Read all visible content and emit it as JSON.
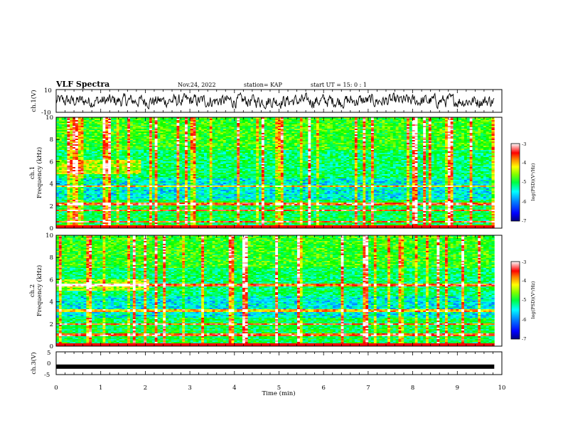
{
  "header": {
    "title": "VLF Spectra",
    "date": "Nov.24, 2022",
    "station": "station= KAP",
    "start_ut": "start UT =  15: 0 : 1"
  },
  "chart_data": [
    {
      "id": "ch1_waveform",
      "type": "line",
      "ylabel": "ch.1(V)",
      "ylim": [
        -10,
        10
      ],
      "yticks": [
        "10",
        "-10"
      ],
      "xlim": [
        0,
        10
      ],
      "description": "noisy waveform oscillating roughly between -6 and 6 V"
    },
    {
      "id": "ch1_spectrogram",
      "type": "heatmap",
      "ylabel": "ch.1\nFrequency (kHz)",
      "ylabel_line1": "ch.1",
      "ylabel_line2": "Frequency (kHz)",
      "ylim": [
        0,
        10
      ],
      "yticks": [
        "0",
        "2",
        "4",
        "6",
        "8",
        "10"
      ],
      "xlim": [
        0,
        10
      ],
      "data_end_min": 9.83,
      "colorbar": {
        "label": "log(PSD)(V²/Hz)",
        "range": [
          -7,
          -3
        ],
        "ticks": [
          "-3",
          "-4",
          "-5",
          "-6",
          "-7"
        ]
      },
      "features": {
        "strong_lines_khz": [
          3.8,
          2.2,
          1.6,
          0.6
        ],
        "step_change_min": 1.95,
        "band_above_step_khz": [
          4.9,
          6.1
        ]
      }
    },
    {
      "id": "ch2_spectrogram",
      "type": "heatmap",
      "ylabel_line1": "ch.2",
      "ylabel_line2": "Frequency (kHz)",
      "ylim": [
        0,
        10
      ],
      "yticks": [
        "0",
        "2",
        "4",
        "6",
        "8",
        "10"
      ],
      "xlim": [
        0,
        10
      ],
      "data_end_min": 9.83,
      "colorbar": {
        "label": "log(PSD)(V²/Hz)",
        "range": [
          -7,
          -3
        ],
        "ticks": [
          "-3",
          "-4",
          "-5",
          "-6",
          "-7"
        ]
      },
      "features": {
        "strong_lines_khz": [
          5.5,
          3.2,
          2.0,
          1.0
        ],
        "step_change_min": 2.15,
        "band_above_step_khz": [
          5.0,
          6.0
        ]
      }
    },
    {
      "id": "ch3_waveform",
      "type": "line",
      "ylabel": "ch.3(V)",
      "ylim": [
        -5,
        5
      ],
      "yticks": [
        "5",
        "0",
        "-5"
      ],
      "xlim": [
        0,
        10
      ],
      "xticks": [
        "0",
        "1",
        "2",
        "3",
        "4",
        "5",
        "6",
        "7",
        "8",
        "9",
        "10"
      ],
      "xlabel": "Time (min)",
      "constant_value_v": -1.5
    }
  ],
  "colors": {
    "colormap": [
      "#000080",
      "#0000ff",
      "#0080ff",
      "#00ffff",
      "#00ff80",
      "#00ff00",
      "#80ff00",
      "#ffff00",
      "#ff8000",
      "#ff0000",
      "#ffffff"
    ],
    "line": "#000000"
  }
}
